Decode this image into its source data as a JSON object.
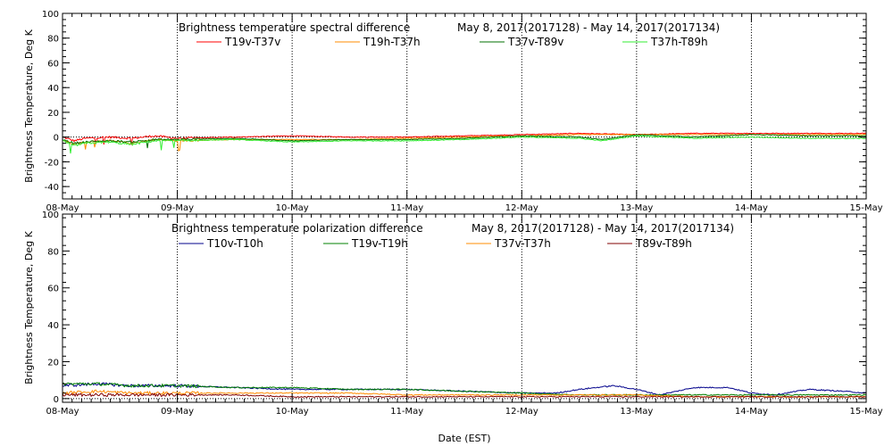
{
  "chart_data": [
    {
      "type": "line",
      "title": "Brightness temperature spectral difference",
      "date_range": "May  8, 2017(2017128) - May 14, 2017(2017134)",
      "ylabel": "Brightness Temperature, Deg K",
      "xlabel": "",
      "xlim": [
        "2017-05-08",
        "2017-05-15"
      ],
      "ylim": [
        -50,
        100
      ],
      "yticks": [
        -40,
        -20,
        0,
        20,
        40,
        60,
        80,
        100
      ],
      "x_tick_labels": [
        "08-May",
        "09-May",
        "10-May",
        "11-May",
        "12-May",
        "13-May",
        "14-May",
        "15-May"
      ],
      "grid": "dotted vertical at each day, dotted horizontal at 0",
      "legend_position": "top",
      "series": [
        {
          "name": "T19v-T37v",
          "color": "#ff0000",
          "keypoints": [
            [
              0,
              0
            ],
            [
              0.1,
              -3
            ],
            [
              0.2,
              -1
            ],
            [
              0.4,
              0
            ],
            [
              0.6,
              -1
            ],
            [
              0.8,
              1
            ],
            [
              1,
              -1
            ],
            [
              1.5,
              0
            ],
            [
              2,
              1
            ],
            [
              2.5,
              0
            ],
            [
              3,
              0
            ],
            [
              3.5,
              1
            ],
            [
              4,
              2
            ],
            [
              4.5,
              3
            ],
            [
              5,
              2
            ],
            [
              5.5,
              3
            ],
            [
              6,
              3
            ],
            [
              6.5,
              3
            ],
            [
              7,
              3
            ]
          ]
        },
        {
          "name": "T19h-T37h",
          "color": "#ff8c00",
          "keypoints": [
            [
              0,
              -2
            ],
            [
              0.1,
              -6
            ],
            [
              0.2,
              -4
            ],
            [
              0.4,
              -3
            ],
            [
              0.6,
              -5
            ],
            [
              0.8,
              -2
            ],
            [
              1,
              -3
            ],
            [
              1.5,
              -2
            ],
            [
              2,
              -2
            ],
            [
              2.5,
              -2
            ],
            [
              3,
              -1
            ],
            [
              3.5,
              0
            ],
            [
              4,
              1
            ],
            [
              4.5,
              2
            ],
            [
              5,
              2
            ],
            [
              5.5,
              2
            ],
            [
              6,
              2
            ],
            [
              6.5,
              2
            ],
            [
              7,
              2
            ]
          ]
        },
        {
          "name": "T37v-T89v",
          "color": "#007000",
          "keypoints": [
            [
              0,
              -2
            ],
            [
              0.1,
              -5
            ],
            [
              0.2,
              -4
            ],
            [
              0.4,
              -3
            ],
            [
              0.6,
              -4
            ],
            [
              0.8,
              -2
            ],
            [
              1,
              -2
            ],
            [
              1.5,
              -1
            ],
            [
              2,
              -3
            ],
            [
              2.5,
              -2
            ],
            [
              3,
              -2
            ],
            [
              3.5,
              -1
            ],
            [
              4,
              1
            ],
            [
              4.5,
              0
            ],
            [
              4.7,
              -2
            ],
            [
              5,
              2
            ],
            [
              5.5,
              0
            ],
            [
              6,
              2
            ],
            [
              6.5,
              1
            ],
            [
              7,
              1
            ]
          ]
        },
        {
          "name": "T37h-T89h",
          "color": "#33ee33",
          "keypoints": [
            [
              0,
              -3
            ],
            [
              0.1,
              -7
            ],
            [
              0.2,
              -5
            ],
            [
              0.4,
              -4
            ],
            [
              0.6,
              -6
            ],
            [
              0.8,
              -3
            ],
            [
              1,
              -3
            ],
            [
              1.5,
              -2
            ],
            [
              2,
              -4
            ],
            [
              2.5,
              -3
            ],
            [
              3,
              -3
            ],
            [
              3.5,
              -2
            ],
            [
              4,
              0
            ],
            [
              4.5,
              -1
            ],
            [
              4.7,
              -3
            ],
            [
              5,
              1
            ],
            [
              5.5,
              -1
            ],
            [
              6,
              0
            ],
            [
              6.5,
              -1
            ],
            [
              7,
              -1
            ]
          ]
        }
      ]
    },
    {
      "type": "line",
      "title": "Brightness temperature polarization difference",
      "date_range": "May  8, 2017(2017128) - May 14, 2017(2017134)",
      "ylabel": "Brightness Temperature, Deg K",
      "xlabel": "Date (EST)",
      "xlim": [
        "2017-05-08",
        "2017-05-15"
      ],
      "ylim": [
        -2,
        100
      ],
      "yticks": [
        0,
        20,
        40,
        60,
        80,
        100
      ],
      "x_tick_labels": [
        "08-May",
        "09-May",
        "10-May",
        "11-May",
        "12-May",
        "13-May",
        "14-May",
        "15-May"
      ],
      "grid": "dotted vertical at each day, dotted horizontal at 0",
      "legend_position": "top",
      "series": [
        {
          "name": "T10v-T10h",
          "color": "#00008b",
          "keypoints": [
            [
              0,
              7
            ],
            [
              0.3,
              8
            ],
            [
              0.6,
              7
            ],
            [
              1,
              7
            ],
            [
              1.5,
              6
            ],
            [
              2,
              5
            ],
            [
              2.5,
              5
            ],
            [
              3,
              5
            ],
            [
              3.5,
              4
            ],
            [
              4,
              3
            ],
            [
              4.3,
              3
            ],
            [
              4.5,
              5
            ],
            [
              4.8,
              7
            ],
            [
              5,
              5
            ],
            [
              5.2,
              2
            ],
            [
              5.5,
              6
            ],
            [
              5.8,
              6
            ],
            [
              6,
              3
            ],
            [
              6.2,
              2
            ],
            [
              6.5,
              5
            ],
            [
              6.8,
              4
            ],
            [
              7,
              3
            ]
          ]
        },
        {
          "name": "T19v-T19h",
          "color": "#008000",
          "keypoints": [
            [
              0,
              8
            ],
            [
              0.3,
              8
            ],
            [
              0.6,
              7
            ],
            [
              1,
              7
            ],
            [
              1.5,
              6
            ],
            [
              2,
              6
            ],
            [
              2.5,
              5
            ],
            [
              3,
              5
            ],
            [
              3.5,
              4
            ],
            [
              4,
              3
            ],
            [
              4.5,
              2
            ],
            [
              5,
              2
            ],
            [
              5.5,
              2
            ],
            [
              6,
              2
            ],
            [
              6.5,
              2
            ],
            [
              7,
              2
            ]
          ]
        },
        {
          "name": "T37v-T37h",
          "color": "#ff8c00",
          "keypoints": [
            [
              0,
              3
            ],
            [
              0.3,
              4
            ],
            [
              0.6,
              3
            ],
            [
              1,
              3
            ],
            [
              1.5,
              3
            ],
            [
              2,
              3
            ],
            [
              2.5,
              3
            ],
            [
              3,
              2
            ],
            [
              3.5,
              2
            ],
            [
              4,
              2
            ],
            [
              4.5,
              2
            ],
            [
              5,
              2
            ],
            [
              5.5,
              1
            ],
            [
              6,
              1
            ],
            [
              6.5,
              1
            ],
            [
              7,
              1
            ]
          ]
        },
        {
          "name": "T89v-T89h",
          "color": "#800000",
          "keypoints": [
            [
              0,
              2
            ],
            [
              0.3,
              2
            ],
            [
              0.6,
              2
            ],
            [
              1,
              2
            ],
            [
              1.5,
              2
            ],
            [
              2,
              1
            ],
            [
              2.5,
              1
            ],
            [
              3,
              1
            ],
            [
              3.5,
              1
            ],
            [
              4,
              1
            ],
            [
              4.5,
              1
            ],
            [
              5,
              1
            ],
            [
              5.5,
              1
            ],
            [
              6,
              1
            ],
            [
              6.5,
              1
            ],
            [
              7,
              1
            ]
          ]
        }
      ]
    }
  ]
}
